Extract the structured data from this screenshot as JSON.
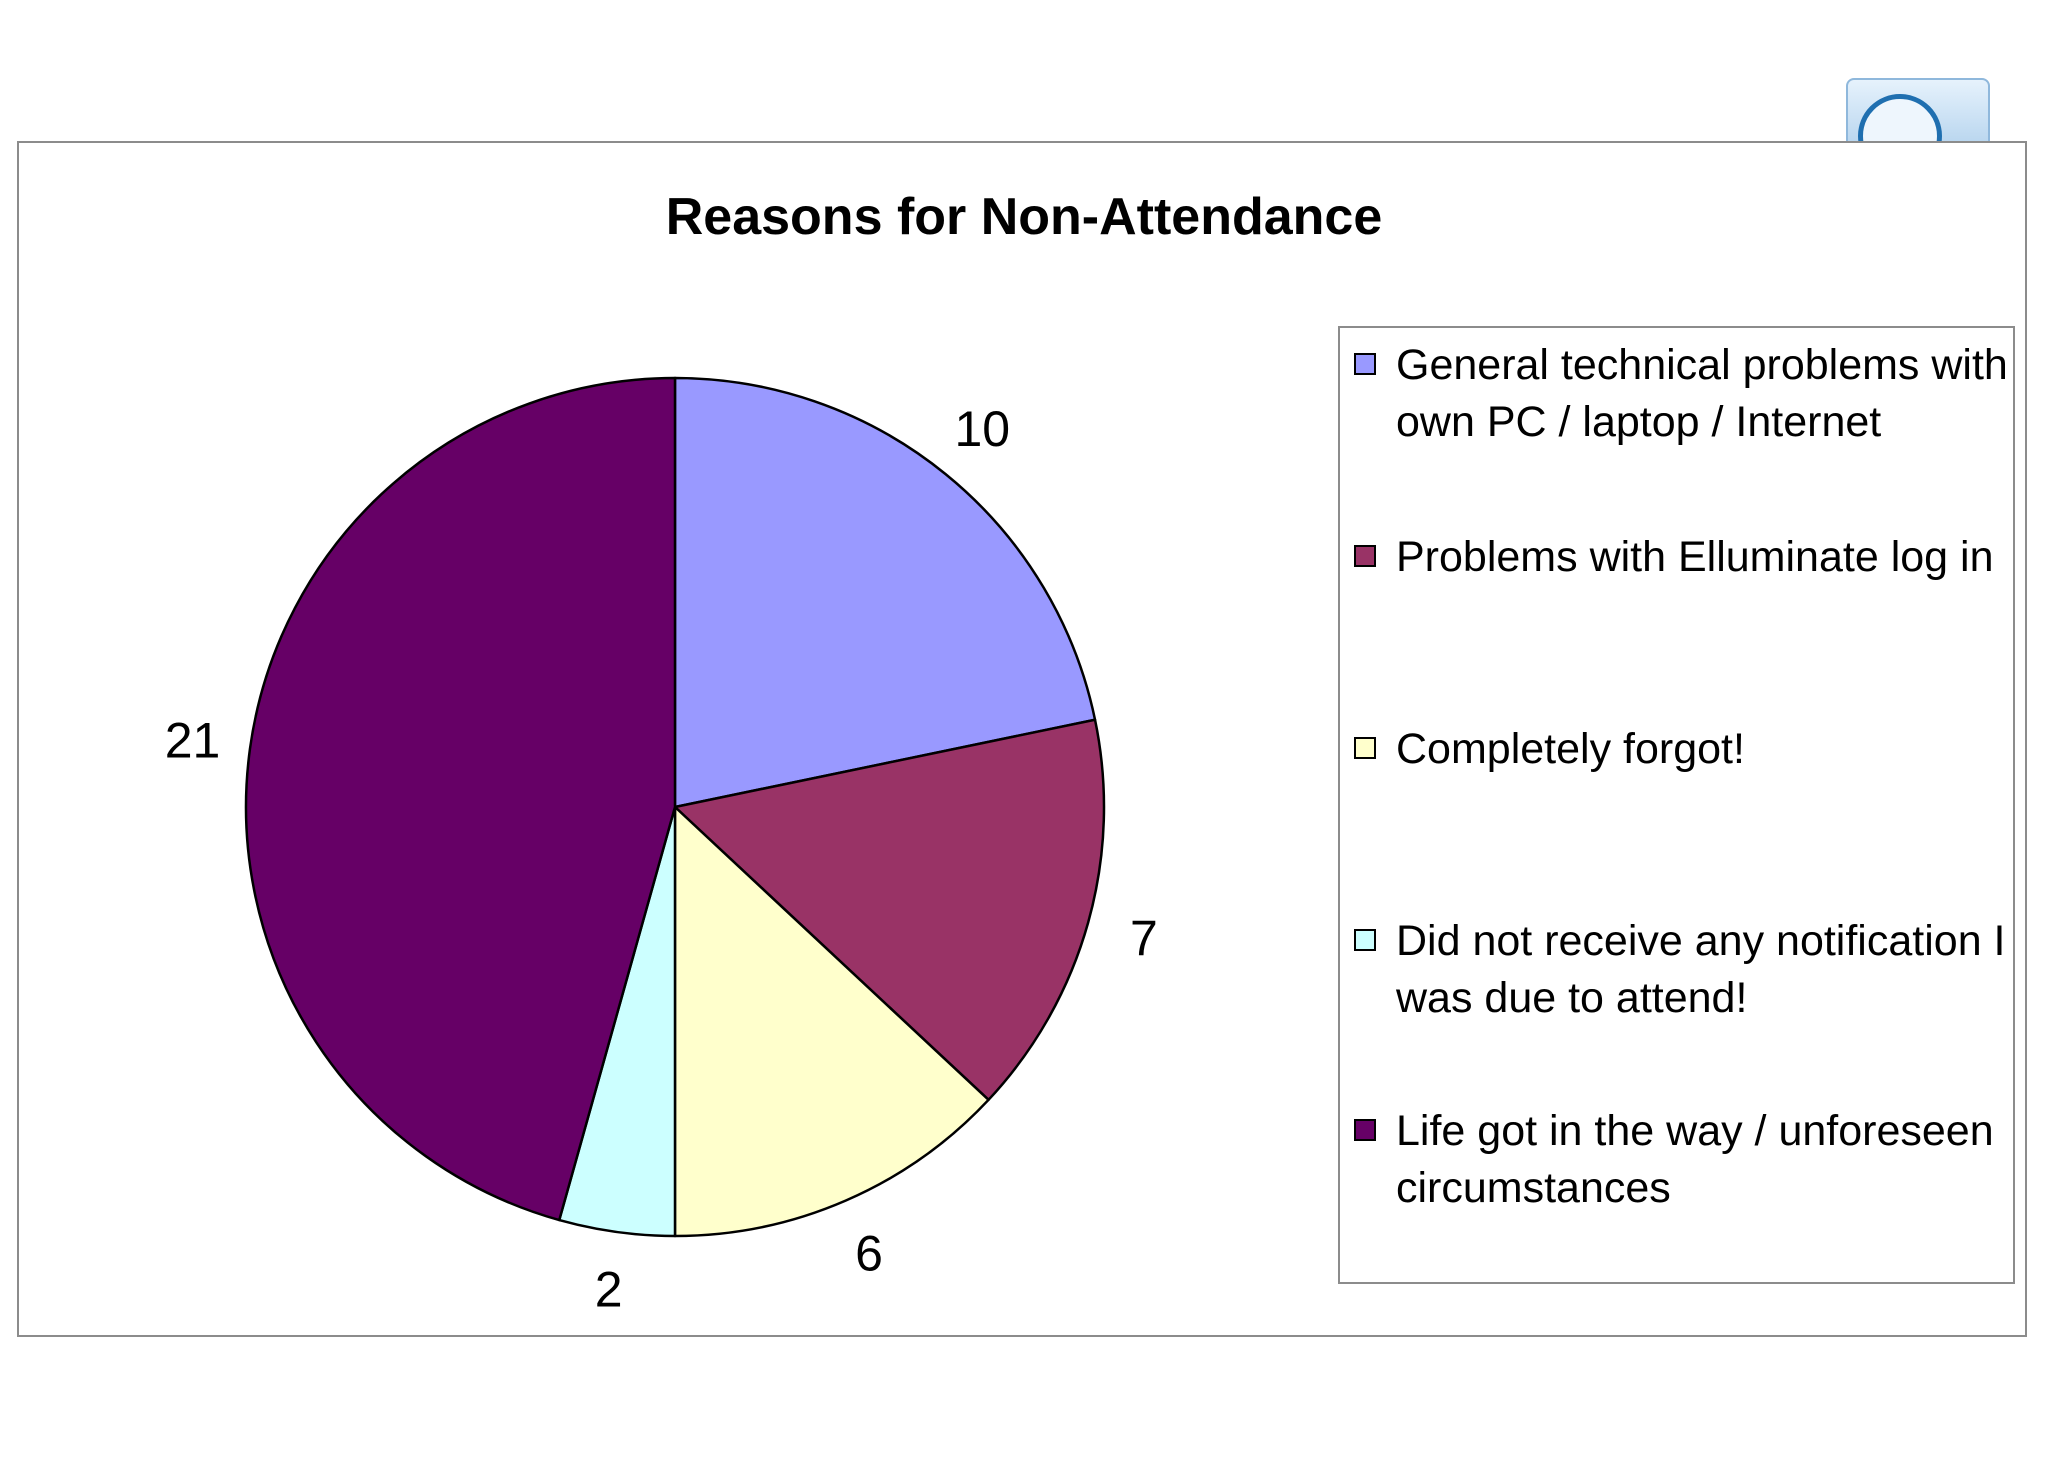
{
  "chart_data": {
    "type": "pie",
    "title": "Reasons for Non-Attendance",
    "categories": [
      "General technical problems with own PC / laptop / Internet",
      "Problems with Elluminate log in",
      "Completely forgot!",
      "Did not receive any notification I was due to attend!",
      "Life got in the way / unforeseen circumstances"
    ],
    "values": [
      10,
      7,
      6,
      2,
      21
    ],
    "data_labels": [
      "10",
      "7",
      "6",
      "2",
      "21"
    ],
    "colors": [
      "#9999ff",
      "#993366",
      "#ffffcc",
      "#ccffff",
      "#660066"
    ],
    "start_angle_deg": 0,
    "direction": "clockwise",
    "legend_position": "right"
  }
}
